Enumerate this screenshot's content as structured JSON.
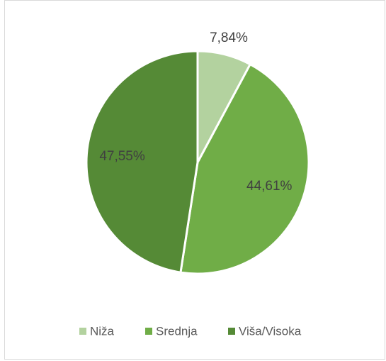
{
  "chart_data": {
    "type": "pie",
    "categories": [
      "Niža",
      "Srednja",
      "Viša/Visoka"
    ],
    "values": [
      7.84,
      44.61,
      47.55
    ],
    "value_labels": [
      "7,84%",
      "44,61%",
      "47,55%"
    ],
    "colors": [
      "#b3d29f",
      "#70ad47",
      "#558a36"
    ]
  }
}
